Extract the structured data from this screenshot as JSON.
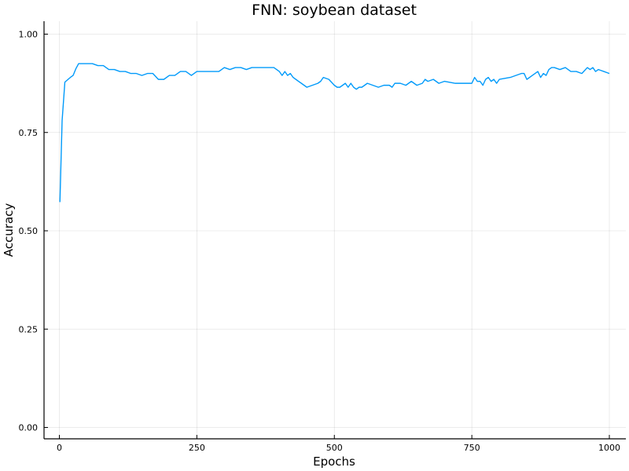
{
  "chart_data": {
    "type": "line",
    "title": "FNN: soybean dataset",
    "xlabel": "Epochs",
    "ylabel": "Accuracy",
    "xlim": [
      0,
      1000
    ],
    "ylim": [
      0,
      1
    ],
    "xticks": [
      0,
      250,
      500,
      750,
      1000
    ],
    "xtick_labels": [
      "0",
      "250",
      "500",
      "750",
      "1000"
    ],
    "yticks": [
      0,
      0.25,
      0.5,
      0.75,
      1.0
    ],
    "ytick_labels": [
      "0.00",
      "0.25",
      "0.50",
      "0.75",
      "1.00"
    ],
    "grid": true,
    "legend": "none",
    "series": [
      {
        "color": "#009AFA",
        "x": [
          1,
          5,
          10,
          20,
          25,
          30,
          35,
          40,
          50,
          60,
          70,
          80,
          90,
          100,
          110,
          120,
          130,
          140,
          150,
          160,
          170,
          180,
          190,
          200,
          210,
          220,
          230,
          240,
          245,
          250,
          260,
          270,
          280,
          290,
          300,
          310,
          320,
          330,
          340,
          350,
          360,
          370,
          380,
          390,
          395,
          400,
          405,
          410,
          415,
          420,
          425,
          430,
          440,
          450,
          460,
          470,
          475,
          480,
          490,
          500,
          505,
          510,
          515,
          520,
          525,
          530,
          535,
          540,
          545,
          550,
          555,
          560,
          570,
          580,
          590,
          600,
          605,
          610,
          620,
          630,
          635,
          640,
          645,
          650,
          660,
          665,
          670,
          680,
          690,
          700,
          720,
          740,
          745,
          750,
          755,
          760,
          765,
          770,
          775,
          780,
          785,
          790,
          795,
          800,
          820,
          830,
          840,
          845,
          850,
          860,
          870,
          875,
          880,
          885,
          890,
          895,
          900,
          910,
          920,
          930,
          940,
          950,
          960,
          965,
          970,
          975,
          980,
          990,
          1000
        ],
        "values": [
          0.573,
          0.78,
          0.878,
          0.89,
          0.895,
          0.912,
          0.925,
          0.925,
          0.925,
          0.925,
          0.92,
          0.92,
          0.91,
          0.91,
          0.905,
          0.905,
          0.9,
          0.9,
          0.895,
          0.9,
          0.9,
          0.885,
          0.885,
          0.895,
          0.895,
          0.905,
          0.905,
          0.895,
          0.9,
          0.905,
          0.905,
          0.905,
          0.905,
          0.905,
          0.915,
          0.91,
          0.915,
          0.915,
          0.91,
          0.915,
          0.915,
          0.915,
          0.915,
          0.915,
          0.91,
          0.905,
          0.895,
          0.905,
          0.895,
          0.9,
          0.89,
          0.885,
          0.875,
          0.865,
          0.87,
          0.875,
          0.88,
          0.89,
          0.885,
          0.87,
          0.865,
          0.865,
          0.87,
          0.875,
          0.865,
          0.875,
          0.865,
          0.86,
          0.865,
          0.865,
          0.87,
          0.875,
          0.87,
          0.865,
          0.87,
          0.87,
          0.865,
          0.875,
          0.875,
          0.87,
          0.875,
          0.88,
          0.875,
          0.87,
          0.875,
          0.885,
          0.88,
          0.885,
          0.875,
          0.88,
          0.875,
          0.875,
          0.875,
          0.875,
          0.89,
          0.88,
          0.88,
          0.87,
          0.885,
          0.89,
          0.88,
          0.885,
          0.875,
          0.885,
          0.89,
          0.895,
          0.9,
          0.9,
          0.885,
          0.895,
          0.905,
          0.89,
          0.9,
          0.895,
          0.91,
          0.915,
          0.915,
          0.91,
          0.915,
          0.905,
          0.905,
          0.9,
          0.915,
          0.91,
          0.915,
          0.905,
          0.91,
          0.905,
          0.9
        ]
      }
    ]
  }
}
